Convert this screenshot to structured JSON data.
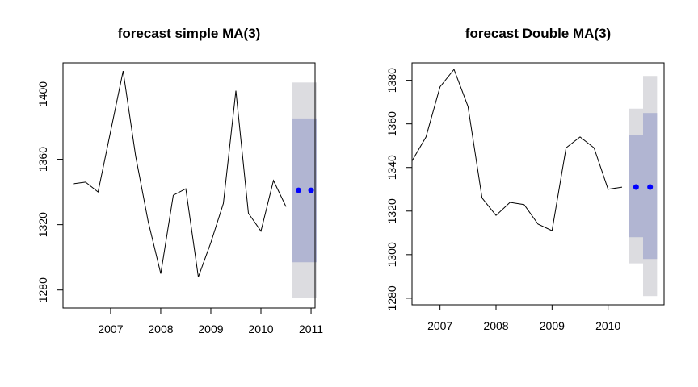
{
  "chart_data": [
    {
      "type": "line",
      "title": "forecast simple MA(3)",
      "xlabel": "",
      "ylabel": "",
      "xlim": [
        2006.05,
        2011.08
      ],
      "ylim": [
        1269,
        1419
      ],
      "xticks": [
        2007,
        2008,
        2009,
        2010,
        2011
      ],
      "yticks": [
        1280,
        1320,
        1360,
        1400
      ],
      "grid": false,
      "series": [
        {
          "x": [
            2006.25,
            2006.5,
            2006.75,
            2007.0,
            2007.25,
            2007.5,
            2007.75,
            2008.0,
            2008.25,
            2008.5,
            2008.75,
            2009.0,
            2009.25,
            2009.5,
            2009.75,
            2010.0,
            2010.25,
            2010.5
          ],
          "values": [
            1345,
            1346,
            1340,
            1377,
            1414,
            1362,
            1322,
            1290,
            1338,
            1342,
            1288,
            1309,
            1333,
            1402,
            1327,
            1316,
            1347,
            1331
          ]
        }
      ],
      "forecast": {
        "x": [
          2010.75,
          2011.0
        ],
        "point": [
          1341,
          1341
        ],
        "interval_80": [
          1297,
          1385
        ],
        "interval_95": [
          1275,
          1407
        ],
        "colors": {
          "point": "#0000ff",
          "band_80": "#b1b5d2",
          "band_95": "#dcdce0"
        }
      }
    },
    {
      "type": "line",
      "title": "forecast Double MA(3)",
      "xlabel": "",
      "ylabel": "",
      "xlim": [
        2006.5,
        2011.0
      ],
      "ylim": [
        1277,
        1388
      ],
      "xticks": [
        2007,
        2008,
        2009,
        2010
      ],
      "yticks": [
        1280,
        1300,
        1320,
        1340,
        1360,
        1380
      ],
      "grid": false,
      "series": [
        {
          "x": [
            2006.5,
            2006.75,
            2007.0,
            2007.25,
            2007.5,
            2007.75,
            2008.0,
            2008.25,
            2008.5,
            2008.75,
            2009.0,
            2009.25,
            2009.5,
            2009.75,
            2010.0,
            2010.25
          ],
          "values": [
            1343,
            1354,
            1377,
            1385,
            1368,
            1326,
            1318,
            1324,
            1323,
            1314,
            1311,
            1349,
            1354,
            1349,
            1330,
            1331
          ]
        }
      ],
      "forecast": {
        "x": [
          2010.5,
          2010.75
        ],
        "point": [
          1331,
          1331
        ],
        "interval_80": [
          [
            1308,
            1355
          ],
          [
            1298,
            1365
          ]
        ],
        "interval_95": [
          [
            1296,
            1367
          ],
          [
            1281,
            1382
          ]
        ],
        "colors": {
          "point": "#0000ff",
          "band_80": "#b1b5d2",
          "band_95": "#dcdce0"
        }
      }
    }
  ]
}
